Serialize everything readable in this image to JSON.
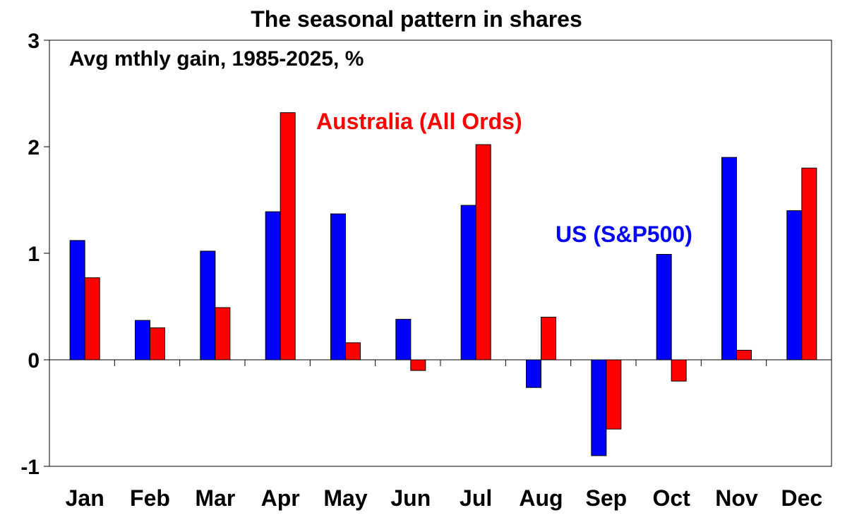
{
  "chart_data": {
    "type": "bar",
    "title": "The seasonal pattern in shares",
    "subtitle": "Avg mthly gain, 1985-2025, %",
    "xlabel": "",
    "ylabel": "",
    "ylim": [
      -1,
      3
    ],
    "yticks": [
      "3",
      "2",
      "1",
      "0",
      "-1"
    ],
    "ytick_values": [
      3,
      2,
      1,
      0,
      -1
    ],
    "grid": false,
    "categories": [
      "Jan",
      "Feb",
      "Mar",
      "Apr",
      "May",
      "Jun",
      "Jul",
      "Aug",
      "Sep",
      "Oct",
      "Nov",
      "Dec"
    ],
    "series": [
      {
        "name": "US (S&P500)",
        "color": "#0000FF",
        "values": [
          1.12,
          0.37,
          1.02,
          1.39,
          1.37,
          0.38,
          1.45,
          -0.26,
          -0.9,
          0.99,
          1.9,
          1.4
        ]
      },
      {
        "name": "Australia (All Ords)",
        "color": "#FF0000",
        "values": [
          0.77,
          0.3,
          0.49,
          2.32,
          0.16,
          -0.1,
          2.02,
          0.4,
          -0.65,
          -0.2,
          0.09,
          1.8
        ]
      }
    ]
  }
}
